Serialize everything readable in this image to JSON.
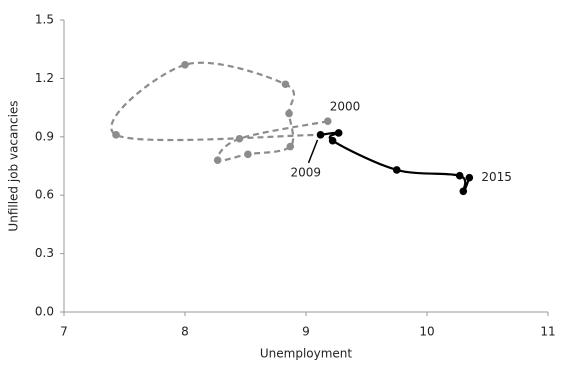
{
  "chart_data": {
    "type": "line",
    "xlabel": "Unemployment",
    "ylabel": "Unfilled job vacancies",
    "xlim": [
      7,
      11
    ],
    "xticks": [
      7,
      8,
      9,
      10,
      11
    ],
    "ylim": [
      0,
      1.5
    ],
    "yticks": [
      {
        "value": 0,
        "label": "0.0"
      },
      0.3,
      0.6,
      0.9,
      1.2,
      1.5
    ],
    "grid": false,
    "series": [
      {
        "color": "#8c8c8c",
        "dash": true,
        "x": [
          9.18,
          8.45,
          8.27,
          8.52,
          8.87,
          8.86,
          8.83,
          8.0,
          7.43
        ],
        "values": [
          0.98,
          0.89,
          0.78,
          0.81,
          0.85,
          1.02,
          1.17,
          1.27,
          0.91
        ]
      },
      {
        "color": "#000000",
        "dash": false,
        "x": [
          9.12,
          9.27,
          9.22,
          9.75,
          10.27,
          10.3,
          10.35
        ],
        "values": [
          0.91,
          0.92,
          0.88,
          0.73,
          0.7,
          0.62,
          0.69
        ]
      }
    ],
    "annotations": [
      "2000",
      "2009",
      "2015"
    ]
  }
}
